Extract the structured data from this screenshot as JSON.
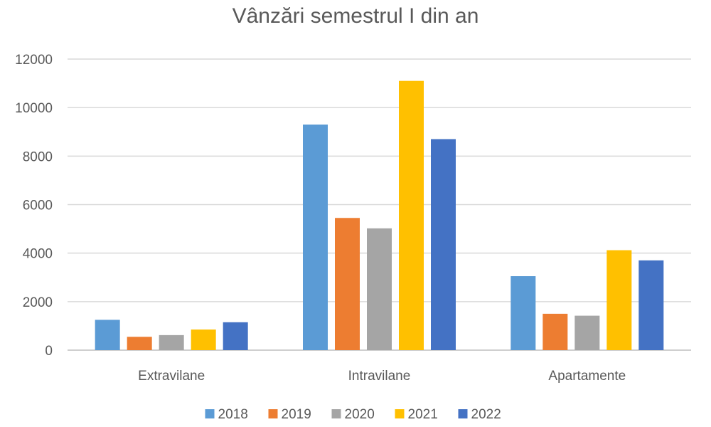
{
  "chart_data": {
    "type": "bar",
    "title": "Vânzări semestrul I din an",
    "categories": [
      "Extravilane",
      "Intravilane",
      "Apartamente"
    ],
    "series": [
      {
        "name": "2018",
        "color": "#5B9BD5",
        "values": [
          1250,
          9300,
          3050
        ]
      },
      {
        "name": "2019",
        "color": "#ED7D31",
        "values": [
          550,
          5450,
          1500
        ]
      },
      {
        "name": "2020",
        "color": "#A5A5A5",
        "values": [
          620,
          5020,
          1420
        ]
      },
      {
        "name": "2021",
        "color": "#FFC000",
        "values": [
          850,
          11100,
          4120
        ]
      },
      {
        "name": "2022",
        "color": "#4472C4",
        "values": [
          1150,
          8700,
          3700
        ]
      }
    ],
    "y_ticks": [
      "0",
      "2000",
      "4000",
      "6000",
      "8000",
      "10000",
      "12000"
    ],
    "ylim": [
      0,
      12000
    ],
    "grid": true,
    "legend_position": "bottom"
  }
}
